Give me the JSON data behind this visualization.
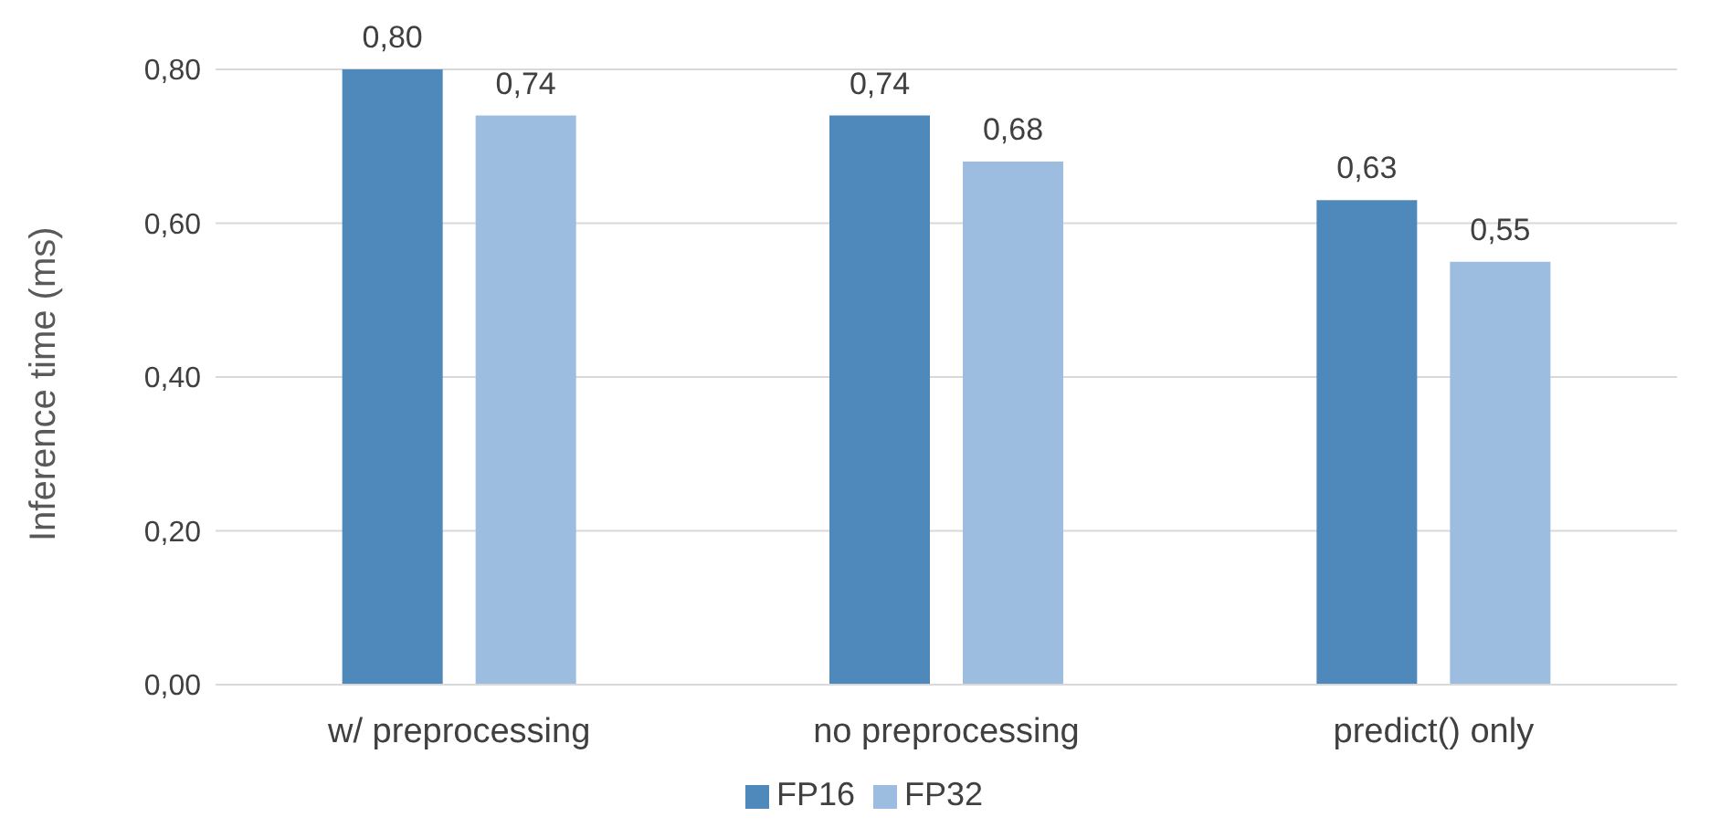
{
  "chart_data": {
    "type": "bar",
    "ylabel": "Inference time (ms)",
    "categories": [
      "w/ preprocessing",
      "no preprocessing",
      "predict() only"
    ],
    "series": [
      {
        "name": "FP16",
        "color": "#4f88bb",
        "values": [
          0.8,
          0.74,
          0.63
        ],
        "value_labels": [
          "0,80",
          "0,74",
          "0,63"
        ]
      },
      {
        "name": "FP32",
        "color": "#9dbde0",
        "values": [
          0.74,
          0.68,
          0.55
        ],
        "value_labels": [
          "0,74",
          "0,68",
          "0,55"
        ]
      }
    ],
    "ylim": [
      0,
      0.8
    ],
    "yticks": [
      {
        "value": 0,
        "label": "0,00"
      },
      {
        "value": 0.2,
        "label": "0,20"
      },
      {
        "value": 0.4,
        "label": "0,40"
      },
      {
        "value": 0.6,
        "label": "0,60"
      },
      {
        "value": 0.8,
        "label": "0,80"
      }
    ],
    "grid": "y",
    "legend": "bottom"
  }
}
